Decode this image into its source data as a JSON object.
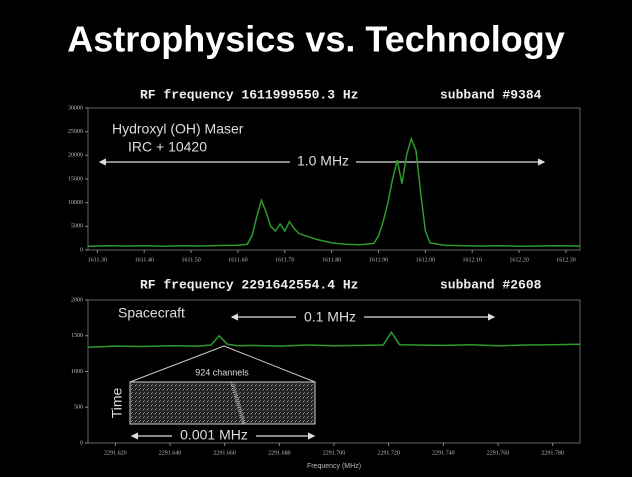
{
  "title": "Astrophysics vs. Technology",
  "chart_data": [
    {
      "type": "line",
      "title": "RF frequency 1611999550.3 Hz",
      "subtitle": "subband #9384",
      "annotations": [
        "Hydroxyl (OH) Maser",
        "IRC + 10420",
        "1.0 MHz"
      ],
      "xlim": [
        1611.28,
        1612.33
      ],
      "ylim": [
        0,
        30000
      ],
      "xticks": [
        {
          "value": 1611.3,
          "label": "1611.30"
        },
        {
          "value": 1611.4,
          "label": "1611.40"
        },
        {
          "value": 1611.5,
          "label": "1611.50"
        },
        {
          "value": 1611.6,
          "label": "1611.60"
        },
        {
          "value": 1611.7,
          "label": "1611.70"
        },
        {
          "value": 1611.8,
          "label": "1611.80"
        },
        {
          "value": 1611.9,
          "label": "1611.90"
        },
        {
          "value": 1612.0,
          "label": "1612.00"
        },
        {
          "value": 1612.1,
          "label": "1612.10"
        },
        {
          "value": 1612.2,
          "label": "1612.20"
        },
        {
          "value": 1612.3,
          "label": "1612.30"
        }
      ],
      "yticks": [
        0,
        5000,
        10000,
        15000,
        20000,
        25000,
        30000
      ],
      "series": [
        {
          "color": "#2e9a2e",
          "x": [
            1611.28,
            1611.32,
            1611.36,
            1611.4,
            1611.44,
            1611.48,
            1611.52,
            1611.56,
            1611.6,
            1611.62,
            1611.63,
            1611.64,
            1611.65,
            1611.66,
            1611.67,
            1611.68,
            1611.69,
            1611.7,
            1611.71,
            1611.72,
            1611.73,
            1611.75,
            1611.77,
            1611.8,
            1611.83,
            1611.86,
            1611.89,
            1611.9,
            1611.91,
            1611.92,
            1611.93,
            1611.94,
            1611.95,
            1611.96,
            1611.97,
            1611.98,
            1611.99,
            1612.0,
            1612.01,
            1612.04,
            1612.08,
            1612.12,
            1612.16,
            1612.2,
            1612.24,
            1612.28,
            1612.33
          ],
          "values": [
            800,
            900,
            850,
            900,
            800,
            900,
            850,
            950,
            1000,
            1200,
            3000,
            7000,
            10500,
            8000,
            5000,
            4000,
            5500,
            4000,
            6000,
            4500,
            3500,
            2800,
            2200,
            1500,
            1200,
            1100,
            1400,
            3000,
            6000,
            10000,
            15000,
            19000,
            14000,
            20000,
            23500,
            21000,
            12000,
            4000,
            1500,
            1000,
            900,
            850,
            900,
            800,
            850,
            900,
            850
          ]
        }
      ]
    },
    {
      "type": "line",
      "title": "RF frequency 2291642554.4 Hz",
      "subtitle": "subband #2608",
      "annotations": [
        "Spacecraft",
        "0.1 MHz",
        "924 channels",
        "Time",
        "0.001 MHz"
      ],
      "x_label": "Frequency (MHz)",
      "xlim": [
        2291.61,
        2291.79
      ],
      "ylim": [
        0,
        2000
      ],
      "xticks": [
        {
          "value": 2291.62,
          "label": "2291.620"
        },
        {
          "value": 2291.64,
          "label": "2291.640"
        },
        {
          "value": 2291.66,
          "label": "2291.660"
        },
        {
          "value": 2291.68,
          "label": "2291.680"
        },
        {
          "value": 2291.7,
          "label": "2291.700"
        },
        {
          "value": 2291.72,
          "label": "2291.720"
        },
        {
          "value": 2291.74,
          "label": "2291.740"
        },
        {
          "value": 2291.76,
          "label": "2291.760"
        },
        {
          "value": 2291.78,
          "label": "2291.780"
        }
      ],
      "yticks": [
        0,
        500,
        1000,
        1500,
        2000
      ],
      "series": [
        {
          "color": "#2e9a2e",
          "x": [
            2291.61,
            2291.62,
            2291.63,
            2291.64,
            2291.65,
            2291.655,
            2291.658,
            2291.661,
            2291.665,
            2291.67,
            2291.68,
            2291.69,
            2291.7,
            2291.71,
            2291.718,
            2291.721,
            2291.724,
            2291.73,
            2291.74,
            2291.75,
            2291.76,
            2291.77,
            2291.78,
            2291.79
          ],
          "values": [
            1340,
            1355,
            1350,
            1360,
            1355,
            1370,
            1500,
            1380,
            1360,
            1365,
            1355,
            1370,
            1360,
            1365,
            1370,
            1550,
            1375,
            1370,
            1365,
            1375,
            1360,
            1370,
            1375,
            1380
          ]
        }
      ]
    }
  ]
}
